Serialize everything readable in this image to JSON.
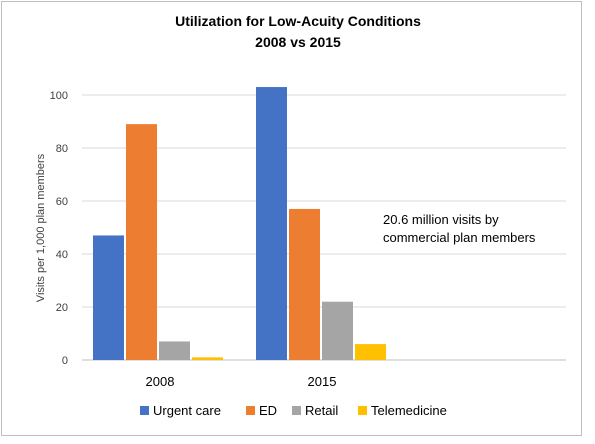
{
  "chart_data": {
    "type": "bar",
    "title": "Utilization for Low-Acuity Conditions",
    "subtitle": "2008 vs 2015",
    "xlabel": "",
    "ylabel": "Visits per 1,000 plan members",
    "categories": [
      "2008",
      "2015"
    ],
    "series": [
      {
        "name": "Urgent care",
        "color": "#4472C4",
        "values": [
          47,
          103
        ]
      },
      {
        "name": "ED",
        "color": "#ED7D31",
        "values": [
          89,
          57
        ]
      },
      {
        "name": "Retail",
        "color": "#A5A5A5",
        "values": [
          7,
          22
        ]
      },
      {
        "name": "Telemedicine",
        "color": "#FFC000",
        "values": [
          1,
          6
        ]
      }
    ],
    "ylim": [
      0,
      100
    ],
    "yticks": [
      "0",
      "20",
      "40",
      "60",
      "80",
      "100"
    ],
    "grid": true,
    "legend": "bottom",
    "annotation": [
      "20.6 million visits by",
      "commercial plan members"
    ]
  }
}
